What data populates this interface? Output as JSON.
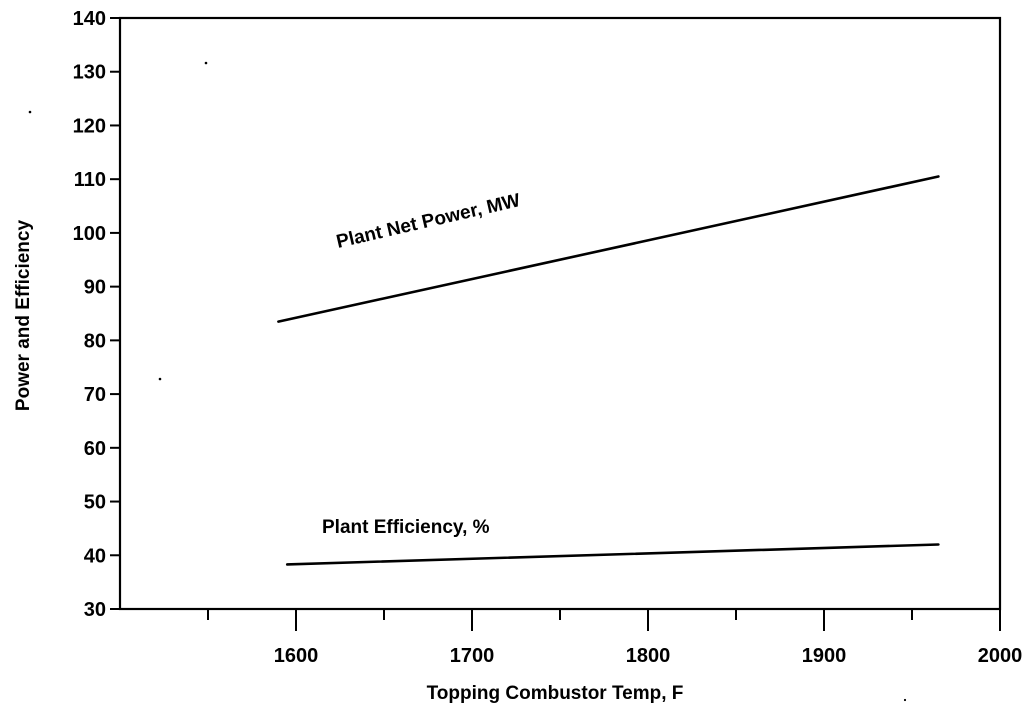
{
  "chart_data": {
    "type": "line",
    "title": "",
    "xlabel": "Topping Combustor Temp, F",
    "ylabel": "Power and Efficiency",
    "xlim": [
      1500,
      2000
    ],
    "ylim": [
      30,
      140
    ],
    "xticks": [
      1600,
      1700,
      1800,
      1900,
      2000
    ],
    "xticks_minor": [
      1550,
      1650,
      1750,
      1850,
      1950
    ],
    "yticks": [
      30,
      40,
      50,
      60,
      70,
      80,
      90,
      100,
      110,
      120,
      130,
      140
    ],
    "grid": false,
    "legend": "none",
    "series": [
      {
        "name": "Plant Net Power, MW",
        "x": [
          1590,
          1965
        ],
        "y": [
          83.5,
          110.5
        ]
      },
      {
        "name": "Plant  Efficiency, %",
        "x": [
          1595,
          1965
        ],
        "y": [
          38.3,
          42.0
        ]
      }
    ],
    "annotations": [
      {
        "text": "Plant Net Power, MW",
        "series": 0
      },
      {
        "text": "Plant  Efficiency, %",
        "series": 1
      }
    ]
  }
}
